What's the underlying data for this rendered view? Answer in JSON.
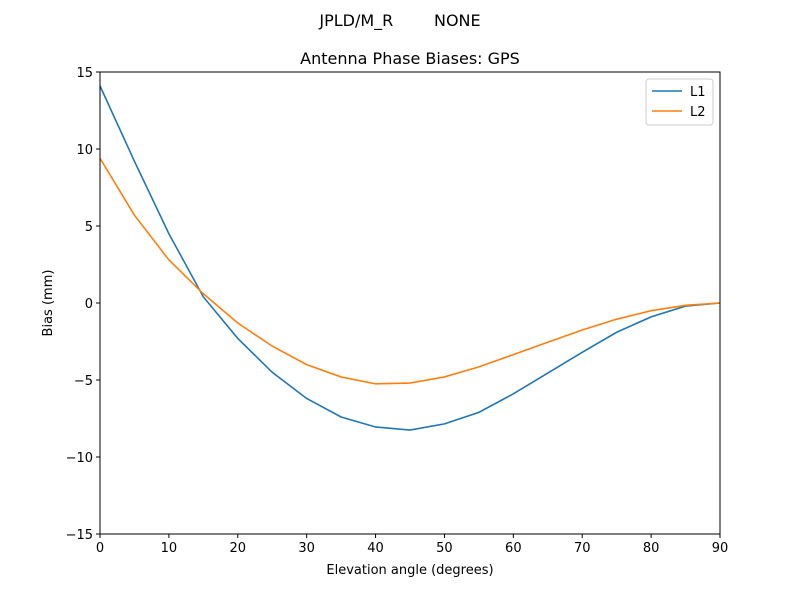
{
  "chart_data": {
    "type": "line",
    "suptitle": "JPLD/M_R        NONE",
    "title": "Antenna Phase Biases: GPS",
    "xlabel": "Elevation angle (degrees)",
    "ylabel": "Bias (mm)",
    "xlim": [
      0,
      90
    ],
    "ylim": [
      -15,
      15
    ],
    "xticks": [
      0,
      10,
      20,
      30,
      40,
      50,
      60,
      70,
      80,
      90
    ],
    "yticks": [
      -15,
      -10,
      -5,
      0,
      5,
      10,
      15
    ],
    "ytick_labels": [
      "−15",
      "−10",
      "−5",
      "0",
      "5",
      "10",
      "15"
    ],
    "grid": false,
    "legend_position": "top-right",
    "x": [
      0,
      5,
      10,
      15,
      20,
      25,
      30,
      35,
      40,
      45,
      50,
      55,
      60,
      65,
      70,
      75,
      80,
      85,
      90
    ],
    "series": [
      {
        "name": "L1",
        "color": "#1f77b4",
        "values": [
          14.1,
          9.2,
          4.5,
          0.4,
          -2.3,
          -4.5,
          -6.2,
          -7.4,
          -8.05,
          -8.25,
          -7.85,
          -7.1,
          -5.9,
          -4.55,
          -3.2,
          -1.9,
          -0.9,
          -0.2,
          0.0
        ]
      },
      {
        "name": "L2",
        "color": "#ff7f0e",
        "values": [
          9.4,
          5.7,
          2.8,
          0.6,
          -1.3,
          -2.8,
          -4.0,
          -4.8,
          -5.25,
          -5.2,
          -4.8,
          -4.15,
          -3.35,
          -2.55,
          -1.75,
          -1.05,
          -0.5,
          -0.15,
          0.0
        ]
      }
    ]
  }
}
